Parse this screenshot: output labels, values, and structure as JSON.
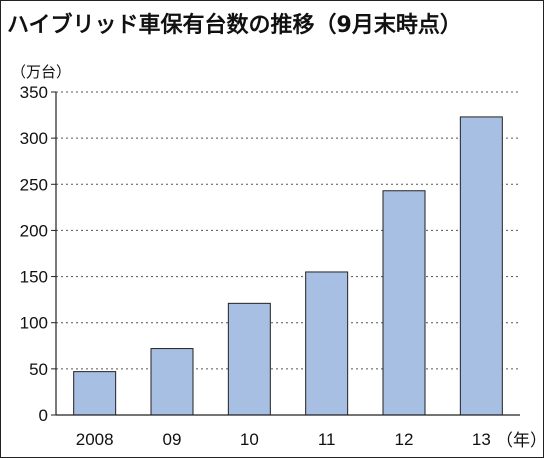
{
  "chart_data": {
    "type": "bar",
    "title": "ハイブリッド車保有台数の推移（9月末時点）",
    "ylabel": "（万台）",
    "xlabel_unit": "（年）",
    "categories": [
      "2008",
      "09",
      "10",
      "11",
      "12",
      "13"
    ],
    "values": [
      47,
      72,
      121,
      155,
      243,
      323
    ],
    "ylim": [
      0,
      350
    ],
    "yticks": [
      0,
      50,
      100,
      150,
      200,
      250,
      300,
      350
    ],
    "grid": true,
    "bar_color": "#a6bfe2"
  }
}
